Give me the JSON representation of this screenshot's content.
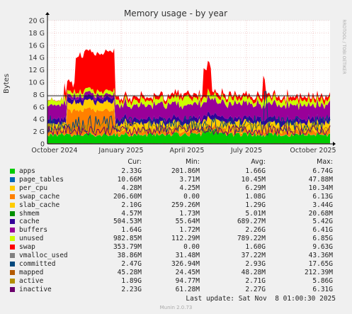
{
  "chart_data": {
    "type": "area",
    "title": "Memory usage - by year",
    "ylabel": "Bytes",
    "side_label": "RRDTOOL / TOBI OETIKER",
    "y_ticks": [
      "0",
      "2 G",
      "4 G",
      "6 G",
      "8 G",
      "10 G",
      "12 G",
      "14 G",
      "16 G",
      "18 G",
      "20 G"
    ],
    "ylim": [
      0,
      20
    ],
    "x_ticks": [
      "October 2024",
      "January 2025",
      "April 2025",
      "July 2025",
      "October 2025"
    ],
    "grid": true,
    "limit_line_gb": 7.8,
    "approx_stack_gb": {
      "apps": 1.5,
      "page_tables": 0.02,
      "per_cpu": 0.01,
      "swap_cache": 0.6,
      "slab_cache": 1.3,
      "shmem": 0.01,
      "cache": 0.7,
      "buffers": 2.3,
      "unused": 0.8,
      "swap_early": 6.0,
      "swap_late": 0.6
    },
    "series": [
      {
        "name": "apps",
        "color": "#00cc00",
        "cur": "2.33G",
        "min": "201.86M",
        "avg": "1.66G",
        "max": "6.74G"
      },
      {
        "name": "page_tables",
        "color": "#0066b3",
        "cur": "10.66M",
        "min": "3.71M",
        "avg": "10.45M",
        "max": "47.88M"
      },
      {
        "name": "per_cpu",
        "color": "#ffcc00",
        "cur": "4.28M",
        "min": "4.25M",
        "avg": "6.29M",
        "max": "10.34M"
      },
      {
        "name": "swap_cache",
        "color": "#ff8000",
        "cur": "206.60M",
        "min": "0.00",
        "avg": "1.08G",
        "max": "6.13G"
      },
      {
        "name": "slab_cache",
        "color": "#ffcc00",
        "cur": "2.10G",
        "min": "259.26M",
        "avg": "1.29G",
        "max": "3.44G"
      },
      {
        "name": "shmem",
        "color": "#008f00",
        "cur": "4.57M",
        "min": "1.73M",
        "avg": "5.01M",
        "max": "20.68M"
      },
      {
        "name": "cache",
        "color": "#330099",
        "cur": "504.53M",
        "min": "55.64M",
        "avg": "689.27M",
        "max": "5.42G"
      },
      {
        "name": "buffers",
        "color": "#990099",
        "cur": "1.64G",
        "min": "1.72M",
        "avg": "2.26G",
        "max": "6.41G"
      },
      {
        "name": "unused",
        "color": "#ccff00",
        "cur": "982.85M",
        "min": "112.29M",
        "avg": "789.22M",
        "max": "6.85G"
      },
      {
        "name": "swap",
        "color": "#ff0000",
        "cur": "353.79M",
        "min": "0.00",
        "avg": "1.60G",
        "max": "9.63G"
      },
      {
        "name": "vmalloc_used",
        "color": "#808080",
        "cur": "38.86M",
        "min": "31.48M",
        "avg": "37.22M",
        "max": "43.36M"
      },
      {
        "name": "committed",
        "color": "#00487d",
        "cur": "2.47G",
        "min": "326.94M",
        "avg": "2.93G",
        "max": "17.65G"
      },
      {
        "name": "mapped",
        "color": "#b35a00",
        "cur": "45.28M",
        "min": "24.45M",
        "avg": "48.28M",
        "max": "212.39M"
      },
      {
        "name": "active",
        "color": "#b38f00",
        "cur": "1.89G",
        "min": "94.77M",
        "avg": "2.71G",
        "max": "5.86G"
      },
      {
        "name": "inactive",
        "color": "#6b006b",
        "cur": "2.23G",
        "min": "61.28M",
        "avg": "2.27G",
        "max": "6.31G"
      }
    ]
  },
  "legend_headers": {
    "cur": "Cur:",
    "min": "Min:",
    "avg": "Avg:",
    "max": "Max:"
  },
  "last_update": "Last update: Sat Nov  8 01:00:30 2025",
  "footer": "Munin 2.0.73"
}
